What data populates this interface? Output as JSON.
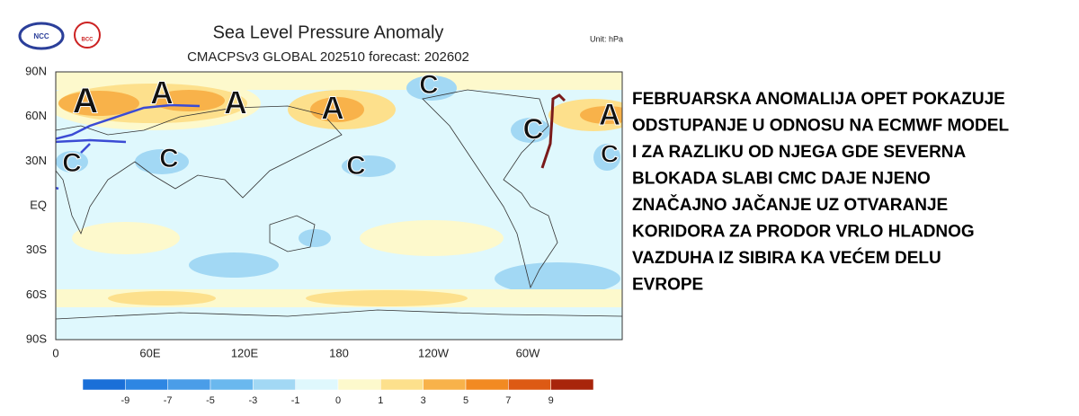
{
  "header": {
    "logos": [
      "NCC",
      "BCC"
    ],
    "title": "Sea Level Pressure Anomaly",
    "subtitle": "CMACPSv3 GLOBAL 202510 forecast: 202602",
    "unit": "Unit: hPa"
  },
  "map": {
    "lat_labels": [
      "90N",
      "60N",
      "30N",
      "EQ",
      "30S",
      "60S",
      "90S"
    ],
    "lon_labels": [
      "0",
      "60E",
      "120E",
      "180",
      "120W",
      "60W"
    ],
    "annotations": [
      "A",
      "A",
      "A",
      "A",
      "A",
      "C",
      "C",
      "C",
      "C",
      "C",
      "C"
    ]
  },
  "colorbar": {
    "ticks": [
      -9,
      -7,
      -5,
      -3,
      -1,
      0,
      1,
      3,
      5,
      7,
      9
    ],
    "colors": [
      "#1a6fd8",
      "#2e86e3",
      "#4a9de8",
      "#6ab8ee",
      "#a2d8f4",
      "#dff8fd",
      "#fdf9cc",
      "#fde08c",
      "#f8b24a",
      "#f28a22",
      "#dd5a14",
      "#a8250b"
    ]
  },
  "commentary": {
    "lines": [
      "FEBRUARSKA ANOMALIJA OPET POKAZUJE",
      "ODSTUPANJE U ODNOSU NA ECMWF MODEL",
      "I ZA RAZLIKU OD NJEGA GDE SEVERNA",
      "BLOKADA SLABI CMC DAJE NJENO",
      "ZNAČAJNO JAČANJE UZ OTVARANJE",
      "KORIDORA ZA PRODOR VRLO HLADNOG",
      "VAZDUHA IZ SIBIRA KA VEĆEM DELU",
      "EVROPE"
    ]
  }
}
